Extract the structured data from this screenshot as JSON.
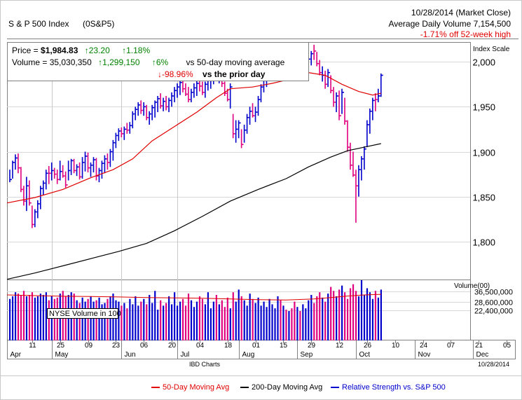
{
  "header": {
    "name": "S & P 500 Index",
    "symbol": "(0S&P5)",
    "date_line": "10/28/2014 (Market Close)",
    "avg_volume_line": "Average Daily Volume 7,154,500",
    "off_high_line": "-1.71% off 52-week high"
  },
  "info": {
    "price_label": "Price = ",
    "price_value": "$1,984.83",
    "price_change": "23.20",
    "price_change_pct": "1.18%",
    "volume_label": "Volume = ",
    "volume_value": "35,030,350",
    "volume_change": "1,299,150",
    "volume_vs50_pct": "6%",
    "volume_vs50_label": "vs 50-day moving average",
    "volume_prior_pct": "-98.96%",
    "volume_prior_label": "vs the prior day"
  },
  "footer": {
    "source": "IBD Charts",
    "date": "10/28/2014"
  },
  "legend": {
    "ma50": "50-Day Moving Avg",
    "ma200": "200-Day Moving Avg",
    "rs": "Relative Strength vs. S&P 500"
  },
  "colors": {
    "up_bar": "#0000cc",
    "down_bar": "#e0007f",
    "ma50": "#e00000",
    "ma200": "#000000",
    "rs": "#0000cc",
    "up_text": "#008000",
    "down_text": "#e00000"
  },
  "chart_data": {
    "type": "ohlc",
    "price_scale_label": "Index Scale",
    "volume_scale_label": "Volume(00)",
    "volume_overlay_label": "NYSE Volume in 100",
    "y_ticks": [
      "2,000",
      "1,950",
      "1,900",
      "1,850",
      "1,800"
    ],
    "y_tick_values": [
      2000,
      1950,
      1900,
      1850,
      1800
    ],
    "ylim": [
      1757,
      2022
    ],
    "volume_ticks": [
      "36,500,000",
      "28,600,000",
      "22,400,000"
    ],
    "volume_tick_values": [
      36500000,
      28600000,
      22400000
    ],
    "volume_lim": [
      0,
      45000000
    ],
    "x_day_labels": [
      "11",
      "25",
      "09",
      "23",
      "06",
      "20",
      "04",
      "18",
      "01",
      "15",
      "29",
      "12",
      "26",
      "10",
      "24",
      "07",
      "21",
      "05"
    ],
    "x_month_labels": [
      "Apr",
      "May",
      "Jun",
      "Jul",
      "Aug",
      "Sep",
      "Oct",
      "Nov",
      "Dec"
    ],
    "x_month_positions": [
      0,
      16,
      41,
      61,
      83,
      104,
      125,
      146,
      167
    ],
    "x_label_positions": [
      9,
      19,
      29,
      39,
      49,
      59,
      69,
      79,
      89,
      99,
      109,
      119,
      129,
      139,
      149,
      159,
      169,
      179
    ],
    "x_range": [
      0,
      182
    ],
    "bars": [
      [
        1,
        1866,
        1880,
        1869,
        "u"
      ],
      [
        2,
        1870,
        1890,
        1888,
        "u"
      ],
      [
        3,
        1880,
        1897,
        1893,
        "u"
      ],
      [
        4,
        1876,
        1898,
        1882,
        "d"
      ],
      [
        5,
        1855,
        1883,
        1858,
        "d"
      ],
      [
        6,
        1840,
        1862,
        1845,
        "d"
      ],
      [
        7,
        1834,
        1872,
        1862,
        "u"
      ],
      [
        8,
        1840,
        1868,
        1843,
        "d"
      ],
      [
        9,
        1815,
        1840,
        1819,
        "d"
      ],
      [
        10,
        1816,
        1836,
        1833,
        "u"
      ],
      [
        11,
        1826,
        1846,
        1842,
        "u"
      ],
      [
        12,
        1836,
        1862,
        1859,
        "u"
      ],
      [
        13,
        1852,
        1868,
        1865,
        "u"
      ],
      [
        14,
        1858,
        1880,
        1876,
        "u"
      ],
      [
        15,
        1864,
        1884,
        1876,
        "d"
      ],
      [
        16,
        1868,
        1888,
        1879,
        "u"
      ],
      [
        17,
        1870,
        1882,
        1875,
        "d"
      ],
      [
        18,
        1864,
        1880,
        1869,
        "d"
      ],
      [
        19,
        1868,
        1890,
        1878,
        "u"
      ],
      [
        20,
        1871,
        1885,
        1873,
        "d"
      ],
      [
        21,
        1860,
        1878,
        1863,
        "d"
      ],
      [
        22,
        1868,
        1890,
        1879,
        "u"
      ],
      [
        23,
        1874,
        1892,
        1890,
        "u"
      ],
      [
        24,
        1876,
        1892,
        1879,
        "d"
      ],
      [
        25,
        1873,
        1886,
        1883,
        "u"
      ],
      [
        26,
        1869,
        1888,
        1872,
        "d"
      ],
      [
        27,
        1870,
        1894,
        1888,
        "u"
      ],
      [
        28,
        1878,
        1900,
        1895,
        "u"
      ],
      [
        29,
        1877,
        1899,
        1882,
        "d"
      ],
      [
        30,
        1872,
        1888,
        1885,
        "u"
      ],
      [
        31,
        1877,
        1894,
        1891,
        "u"
      ],
      [
        32,
        1868,
        1893,
        1873,
        "d"
      ],
      [
        33,
        1866,
        1882,
        1879,
        "u"
      ],
      [
        34,
        1870,
        1890,
        1887,
        "u"
      ],
      [
        35,
        1876,
        1896,
        1892,
        "u"
      ],
      [
        36,
        1880,
        1898,
        1888,
        "d"
      ],
      [
        37,
        1883,
        1903,
        1900,
        "u"
      ],
      [
        38,
        1890,
        1913,
        1910,
        "u"
      ],
      [
        39,
        1904,
        1921,
        1918,
        "u"
      ],
      [
        40,
        1912,
        1926,
        1923,
        "u"
      ],
      [
        41,
        1916,
        1927,
        1920,
        "d"
      ],
      [
        42,
        1913,
        1928,
        1925,
        "u"
      ],
      [
        43,
        1920,
        1932,
        1924,
        "d"
      ],
      [
        44,
        1920,
        1933,
        1929,
        "u"
      ],
      [
        45,
        1926,
        1945,
        1942,
        "u"
      ],
      [
        46,
        1935,
        1950,
        1947,
        "u"
      ],
      [
        47,
        1940,
        1955,
        1952,
        "u"
      ],
      [
        48,
        1942,
        1957,
        1946,
        "d"
      ],
      [
        49,
        1940,
        1955,
        1950,
        "u"
      ],
      [
        50,
        1935,
        1952,
        1938,
        "d"
      ],
      [
        51,
        1930,
        1945,
        1942,
        "u"
      ],
      [
        52,
        1935,
        1952,
        1949,
        "u"
      ],
      [
        53,
        1938,
        1957,
        1955,
        "u"
      ],
      [
        54,
        1944,
        1962,
        1959,
        "u"
      ],
      [
        55,
        1948,
        1965,
        1951,
        "d"
      ],
      [
        56,
        1945,
        1960,
        1956,
        "u"
      ],
      [
        57,
        1946,
        1962,
        1950,
        "d"
      ],
      [
        58,
        1944,
        1960,
        1957,
        "u"
      ],
      [
        59,
        1950,
        1966,
        1962,
        "u"
      ],
      [
        60,
        1955,
        1972,
        1968,
        "u"
      ],
      [
        61,
        1960,
        1976,
        1972,
        "u"
      ],
      [
        62,
        1963,
        1980,
        1977,
        "u"
      ],
      [
        63,
        1966,
        1982,
        1970,
        "d"
      ],
      [
        64,
        1962,
        1976,
        1964,
        "d"
      ],
      [
        65,
        1955,
        1972,
        1958,
        "d"
      ],
      [
        66,
        1955,
        1970,
        1966,
        "u"
      ],
      [
        67,
        1960,
        1976,
        1971,
        "u"
      ],
      [
        68,
        1962,
        1980,
        1976,
        "u"
      ],
      [
        69,
        1967,
        1983,
        1973,
        "d"
      ],
      [
        70,
        1963,
        1978,
        1966,
        "d"
      ],
      [
        71,
        1960,
        1978,
        1975,
        "u"
      ],
      [
        72,
        1968,
        1982,
        1979,
        "u"
      ],
      [
        73,
        1970,
        1985,
        1981,
        "u"
      ],
      [
        74,
        1975,
        1989,
        1986,
        "u"
      ],
      [
        75,
        1979,
        1991,
        1984,
        "d"
      ],
      [
        76,
        1976,
        1990,
        1987,
        "u"
      ],
      [
        77,
        1972,
        1988,
        1976,
        "d"
      ],
      [
        78,
        1962,
        1978,
        1965,
        "d"
      ],
      [
        79,
        1956,
        1970,
        1958,
        "d"
      ],
      [
        80,
        1948,
        1976,
        1972,
        "u"
      ],
      [
        81,
        1915,
        1942,
        1920,
        "d"
      ],
      [
        82,
        1910,
        1935,
        1925,
        "u"
      ],
      [
        83,
        1915,
        1935,
        1932,
        "u"
      ],
      [
        84,
        1904,
        1925,
        1908,
        "d"
      ],
      [
        85,
        1910,
        1930,
        1924,
        "u"
      ],
      [
        86,
        1920,
        1942,
        1938,
        "u"
      ],
      [
        87,
        1930,
        1950,
        1945,
        "u"
      ],
      [
        88,
        1938,
        1954,
        1940,
        "d"
      ],
      [
        89,
        1933,
        1950,
        1944,
        "u"
      ],
      [
        90,
        1940,
        1962,
        1958,
        "u"
      ],
      [
        91,
        1955,
        1975,
        1972,
        "u"
      ],
      [
        92,
        1966,
        1983,
        1979,
        "u"
      ],
      [
        93,
        1972,
        1990,
        1986,
        "u"
      ],
      [
        94,
        1981,
        1995,
        1991,
        "u"
      ],
      [
        95,
        1985,
        2000,
        1995,
        "u"
      ],
      [
        96,
        1990,
        2004,
        2000,
        "u"
      ],
      [
        97,
        1995,
        2007,
        2003,
        "u"
      ],
      [
        98,
        1992,
        2005,
        1996,
        "d"
      ],
      [
        99,
        1995,
        2008,
        2004,
        "u"
      ],
      [
        100,
        1998,
        2011,
        2002,
        "d"
      ],
      [
        101,
        1993,
        2007,
        2004,
        "u"
      ],
      [
        102,
        1996,
        2010,
        2005,
        "d"
      ],
      [
        103,
        1990,
        2006,
        1997,
        "d"
      ],
      [
        104,
        1993,
        2004,
        2001,
        "u"
      ],
      [
        105,
        1985,
        2000,
        1988,
        "d"
      ],
      [
        106,
        1980,
        1997,
        1993,
        "u"
      ],
      [
        107,
        1984,
        2002,
        1999,
        "u"
      ],
      [
        108,
        1990,
        2006,
        2003,
        "u"
      ],
      [
        109,
        1996,
        2012,
        2009,
        "u"
      ],
      [
        110,
        2002,
        2019,
        2012,
        "d"
      ],
      [
        111,
        1995,
        2011,
        1998,
        "d"
      ],
      [
        112,
        1985,
        2002,
        1988,
        "d"
      ],
      [
        113,
        1978,
        1995,
        1985,
        "u"
      ],
      [
        114,
        1970,
        1990,
        1975,
        "d"
      ],
      [
        115,
        1972,
        1992,
        1988,
        "u"
      ],
      [
        116,
        1965,
        1985,
        1968,
        "d"
      ],
      [
        117,
        1950,
        1972,
        1955,
        "d"
      ],
      [
        118,
        1944,
        1966,
        1962,
        "u"
      ],
      [
        119,
        1935,
        1968,
        1940,
        "d"
      ],
      [
        120,
        1942,
        1970,
        1966,
        "u"
      ],
      [
        121,
        1930,
        1960,
        1934,
        "d"
      ],
      [
        122,
        1900,
        1935,
        1905,
        "d"
      ],
      [
        123,
        1880,
        1910,
        1885,
        "d"
      ],
      [
        124,
        1872,
        1900,
        1874,
        "d"
      ],
      [
        125,
        1821,
        1880,
        1862,
        "d"
      ],
      [
        126,
        1850,
        1885,
        1880,
        "u"
      ],
      [
        127,
        1868,
        1895,
        1892,
        "u"
      ],
      [
        128,
        1880,
        1906,
        1903,
        "u"
      ],
      [
        129,
        1905,
        1935,
        1930,
        "u"
      ],
      [
        130,
        1920,
        1948,
        1945,
        "u"
      ],
      [
        131,
        1935,
        1960,
        1957,
        "u"
      ],
      [
        132,
        1945,
        1965,
        1958,
        "d"
      ],
      [
        133,
        1955,
        1970,
        1962,
        "u"
      ],
      [
        134,
        1961,
        1987,
        1985,
        "u"
      ]
    ],
    "ma50": [
      [
        0,
        1843
      ],
      [
        10,
        1849
      ],
      [
        20,
        1858
      ],
      [
        30,
        1871
      ],
      [
        38,
        1880
      ],
      [
        45,
        1892
      ],
      [
        52,
        1912
      ],
      [
        60,
        1928
      ],
      [
        68,
        1944
      ],
      [
        75,
        1960
      ],
      [
        80,
        1970
      ],
      [
        88,
        1972
      ],
      [
        95,
        1976
      ],
      [
        102,
        1981
      ],
      [
        108,
        1988
      ],
      [
        114,
        1985
      ],
      [
        120,
        1975
      ],
      [
        126,
        1967
      ],
      [
        131,
        1963
      ],
      [
        134,
        1965
      ]
    ],
    "ma200": [
      [
        0,
        1758
      ],
      [
        10,
        1765
      ],
      [
        20,
        1773
      ],
      [
        30,
        1781
      ],
      [
        40,
        1789
      ],
      [
        50,
        1798
      ],
      [
        60,
        1812
      ],
      [
        70,
        1828
      ],
      [
        80,
        1845
      ],
      [
        90,
        1858
      ],
      [
        100,
        1870
      ],
      [
        108,
        1883
      ],
      [
        116,
        1894
      ],
      [
        122,
        1901
      ],
      [
        128,
        1905
      ],
      [
        134,
        1909
      ]
    ],
    "nyse_volume_line": [
      [
        0,
        34000000
      ],
      [
        10,
        33500000
      ],
      [
        20,
        33000000
      ],
      [
        30,
        32800000
      ],
      [
        40,
        32500000
      ],
      [
        50,
        32000000
      ],
      [
        60,
        31800000
      ],
      [
        70,
        31500000
      ],
      [
        80,
        31000000
      ],
      [
        90,
        30500000
      ],
      [
        100,
        30200000
      ],
      [
        110,
        31000000
      ],
      [
        116,
        32000000
      ],
      [
        122,
        33200000
      ],
      [
        128,
        34000000
      ],
      [
        134,
        34500000
      ]
    ],
    "volume": [
      31,
      33,
      36,
      35,
      34,
      37,
      33,
      34,
      36,
      32,
      33,
      35,
      34,
      36,
      30,
      33,
      31,
      32,
      35,
      37,
      33,
      34,
      36,
      35,
      30,
      28,
      32,
      29,
      31,
      33,
      29,
      30,
      32,
      27,
      28,
      31,
      33,
      35,
      30,
      29,
      26,
      28,
      24,
      31,
      27,
      33,
      26,
      29,
      31,
      27,
      34,
      28,
      37,
      23,
      30,
      26,
      28,
      33,
      27,
      36,
      26,
      29,
      31,
      26,
      35,
      30,
      25,
      29,
      33,
      31,
      27,
      36,
      24,
      29,
      34,
      27,
      30,
      25,
      32,
      24,
      36,
      29,
      38,
      33,
      30,
      26,
      35,
      31,
      28,
      32,
      26,
      29,
      25,
      31,
      27,
      24,
      33,
      30,
      26,
      23,
      22,
      24,
      29,
      25,
      22,
      27,
      24,
      30,
      34,
      28,
      33,
      36,
      32,
      29,
      35,
      40,
      37,
      33,
      38,
      41,
      36,
      31,
      39,
      42,
      37,
      33,
      45,
      34,
      39,
      36,
      31,
      37,
      32,
      38
    ]
  }
}
